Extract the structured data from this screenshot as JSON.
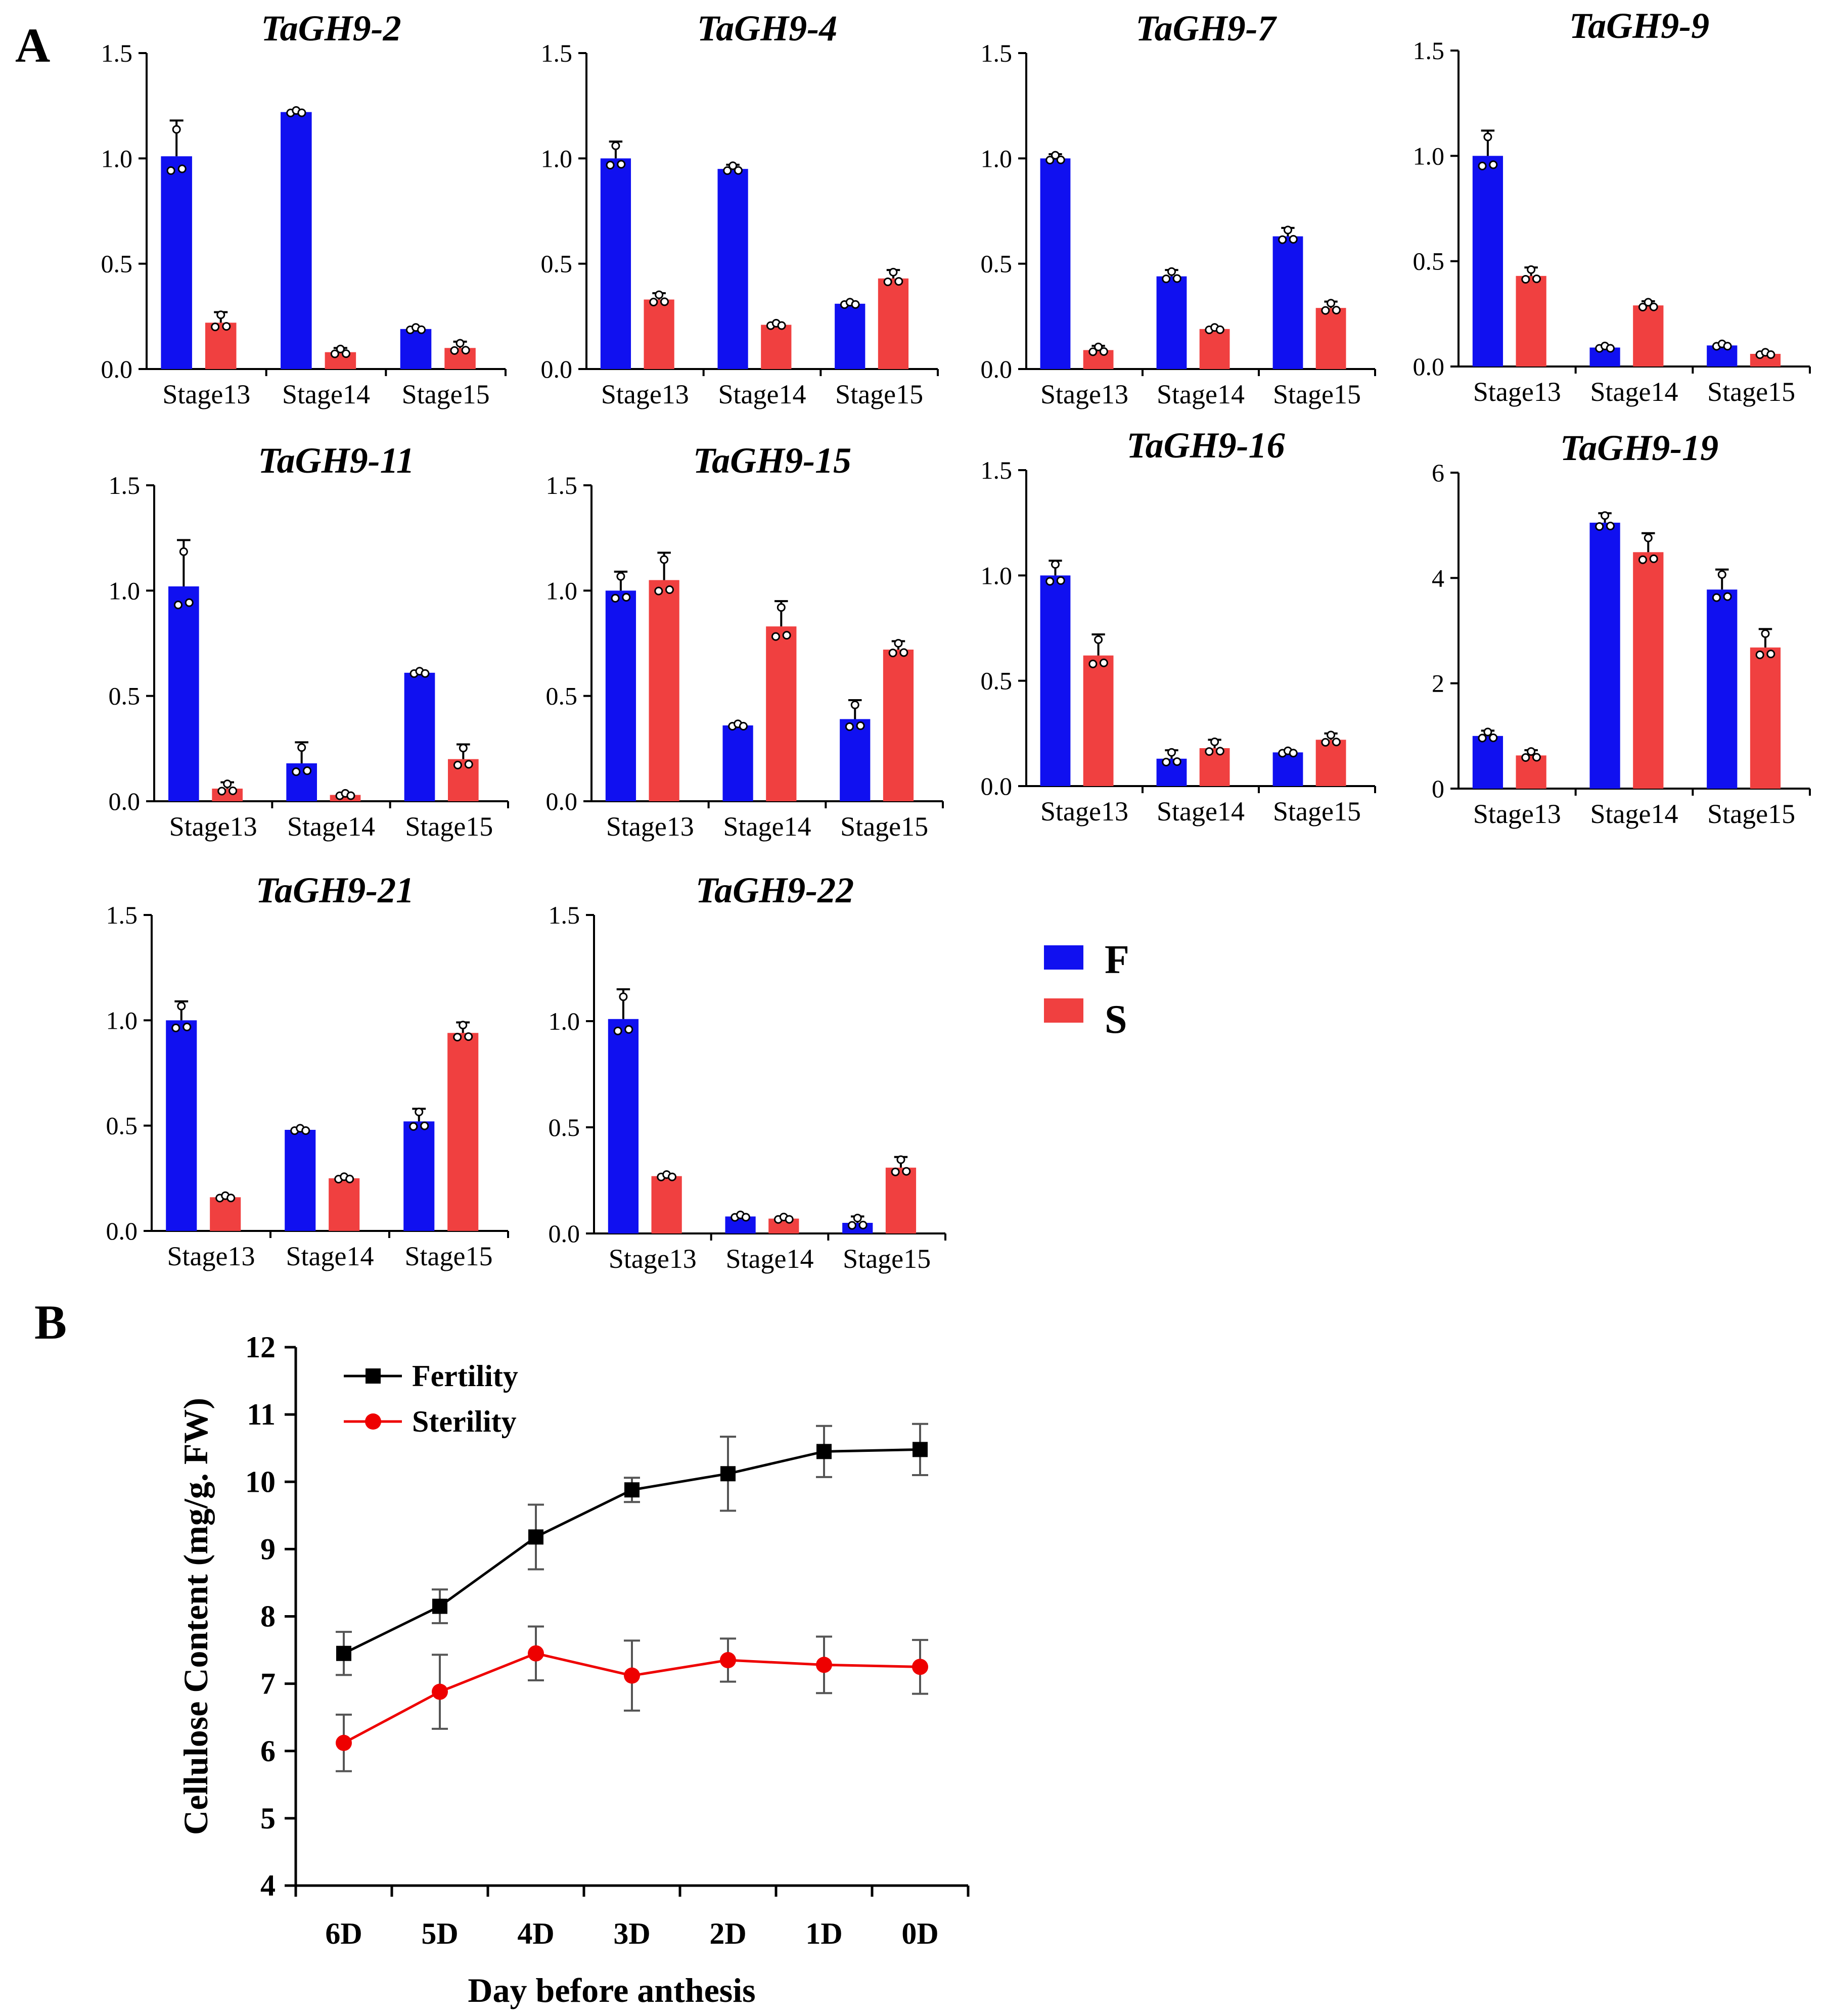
{
  "panel_labels": {
    "a": "A",
    "b": "B"
  },
  "colors": {
    "F": "#1010f0",
    "S": "#f04040",
    "fertility": "#000000",
    "sterility": "#ee0000"
  },
  "bar_legend": [
    {
      "key": "F",
      "label": "F"
    },
    {
      "key": "S",
      "label": "S"
    }
  ],
  "chart_data": [
    {
      "type": "bar",
      "title": "TaGH9-2",
      "categories": [
        "Stage13",
        "Stage14",
        "Stage15"
      ],
      "ylim": [
        0,
        1.5
      ],
      "yticks": [
        "0.0",
        "0.5",
        "1.0",
        "1.5"
      ],
      "series": [
        {
          "name": "F",
          "values": [
            1.01,
            1.22,
            0.19
          ],
          "err": [
            0.17,
            0.01,
            0.01
          ]
        },
        {
          "name": "S",
          "values": [
            0.22,
            0.08,
            0.1
          ],
          "err": [
            0.05,
            0.02,
            0.03
          ]
        }
      ]
    },
    {
      "type": "bar",
      "title": "TaGH9-4",
      "categories": [
        "Stage13",
        "Stage14",
        "Stage15"
      ],
      "ylim": [
        0,
        1.5
      ],
      "yticks": [
        "0.0",
        "0.5",
        "1.0",
        "1.5"
      ],
      "series": [
        {
          "name": "F",
          "values": [
            1.0,
            0.95,
            0.31
          ],
          "err": [
            0.08,
            0.02,
            0.01
          ]
        },
        {
          "name": "S",
          "values": [
            0.33,
            0.21,
            0.43
          ],
          "err": [
            0.03,
            0.01,
            0.04
          ]
        }
      ]
    },
    {
      "type": "bar",
      "title": "TaGH9-7",
      "categories": [
        "Stage13",
        "Stage14",
        "Stage15"
      ],
      "ylim": [
        0,
        1.5
      ],
      "yticks": [
        "0.0",
        "0.5",
        "1.0",
        "1.5"
      ],
      "series": [
        {
          "name": "F",
          "values": [
            1.0,
            0.44,
            0.63
          ],
          "err": [
            0.02,
            0.03,
            0.04
          ]
        },
        {
          "name": "S",
          "values": [
            0.09,
            0.19,
            0.29
          ],
          "err": [
            0.02,
            0.01,
            0.03
          ]
        }
      ]
    },
    {
      "type": "bar",
      "title": "TaGH9-9",
      "categories": [
        "Stage13",
        "Stage14",
        "Stage15"
      ],
      "ylim": [
        0,
        1.5
      ],
      "yticks": [
        "0.0",
        "0.5",
        "1.0",
        "1.5"
      ],
      "series": [
        {
          "name": "F",
          "values": [
            1.0,
            0.09,
            0.1
          ],
          "err": [
            0.12,
            0.01,
            0.01
          ]
        },
        {
          "name": "S",
          "values": [
            0.43,
            0.29,
            0.06
          ],
          "err": [
            0.04,
            0.02,
            0.01
          ]
        }
      ]
    },
    {
      "type": "bar",
      "title": "TaGH9-11",
      "categories": [
        "Stage13",
        "Stage14",
        "Stage15"
      ],
      "ylim": [
        0,
        1.5
      ],
      "yticks": [
        "0.0",
        "0.5",
        "1.0",
        "1.5"
      ],
      "series": [
        {
          "name": "F",
          "values": [
            1.02,
            0.18,
            0.61
          ],
          "err": [
            0.22,
            0.1,
            0.01
          ]
        },
        {
          "name": "S",
          "values": [
            0.06,
            0.03,
            0.2
          ],
          "err": [
            0.03,
            0.01,
            0.07
          ]
        }
      ]
    },
    {
      "type": "bar",
      "title": "TaGH9-15",
      "categories": [
        "Stage13",
        "Stage14",
        "Stage15"
      ],
      "ylim": [
        0,
        1.5
      ],
      "yticks": [
        "0.0",
        "0.5",
        "1.0",
        "1.5"
      ],
      "series": [
        {
          "name": "F",
          "values": [
            1.0,
            0.36,
            0.39
          ],
          "err": [
            0.09,
            0.01,
            0.09
          ]
        },
        {
          "name": "S",
          "values": [
            1.05,
            0.83,
            0.72
          ],
          "err": [
            0.13,
            0.12,
            0.04
          ]
        }
      ]
    },
    {
      "type": "bar",
      "title": "TaGH9-16",
      "categories": [
        "Stage13",
        "Stage14",
        "Stage15"
      ],
      "ylim": [
        0,
        1.5
      ],
      "yticks": [
        "0.0",
        "0.5",
        "1.0",
        "1.5"
      ],
      "series": [
        {
          "name": "F",
          "values": [
            1.0,
            0.13,
            0.16
          ],
          "err": [
            0.07,
            0.04,
            0.01
          ]
        },
        {
          "name": "S",
          "values": [
            0.62,
            0.18,
            0.22
          ],
          "err": [
            0.1,
            0.04,
            0.03
          ]
        }
      ]
    },
    {
      "type": "bar",
      "title": "TaGH9-19",
      "categories": [
        "Stage13",
        "Stage14",
        "Stage15"
      ],
      "ylim": [
        0,
        6
      ],
      "yticks": [
        "0",
        "2",
        "4",
        "6"
      ],
      "series": [
        {
          "name": "F",
          "values": [
            1.0,
            5.05,
            3.78
          ],
          "err": [
            0.1,
            0.18,
            0.38
          ]
        },
        {
          "name": "S",
          "values": [
            0.63,
            4.49,
            2.68
          ],
          "err": [
            0.1,
            0.36,
            0.35
          ]
        }
      ]
    },
    {
      "type": "bar",
      "title": "TaGH9-21",
      "categories": [
        "Stage13",
        "Stage14",
        "Stage15"
      ],
      "ylim": [
        0,
        1.5
      ],
      "yticks": [
        "0.0",
        "0.5",
        "1.0",
        "1.5"
      ],
      "series": [
        {
          "name": "F",
          "values": [
            1.0,
            0.48,
            0.52
          ],
          "err": [
            0.09,
            0.01,
            0.06
          ]
        },
        {
          "name": "S",
          "values": [
            0.16,
            0.25,
            0.94
          ],
          "err": [
            0.01,
            0.01,
            0.05
          ]
        }
      ]
    },
    {
      "type": "bar",
      "title": "TaGH9-22",
      "categories": [
        "Stage13",
        "Stage14",
        "Stage15"
      ],
      "ylim": [
        0,
        1.5
      ],
      "yticks": [
        "0.0",
        "0.5",
        "1.0",
        "1.5"
      ],
      "series": [
        {
          "name": "F",
          "values": [
            1.01,
            0.08,
            0.05
          ],
          "err": [
            0.14,
            0.01,
            0.03
          ]
        },
        {
          "name": "S",
          "values": [
            0.27,
            0.07,
            0.31
          ],
          "err": [
            0.01,
            0.01,
            0.05
          ]
        }
      ]
    },
    {
      "type": "line",
      "title": "",
      "xlabel": "Day before anthesis",
      "ylabel": "Cellulose Content (mg/g.  FW)",
      "x": [
        "6D",
        "5D",
        "4D",
        "3D",
        "2D",
        "1D",
        "0D"
      ],
      "ylim": [
        4,
        12
      ],
      "yticks": [
        "4",
        "5",
        "6",
        "7",
        "8",
        "9",
        "10",
        "11",
        "12"
      ],
      "series": [
        {
          "name": "Fertility",
          "values": [
            7.45,
            8.15,
            9.18,
            9.88,
            10.12,
            10.45,
            10.48
          ],
          "err": [
            0.32,
            0.25,
            0.48,
            0.18,
            0.55,
            0.38,
            0.38
          ]
        },
        {
          "name": "Sterility",
          "values": [
            6.12,
            6.88,
            7.45,
            7.12,
            7.35,
            7.28,
            7.25
          ],
          "err": [
            0.42,
            0.55,
            0.4,
            0.52,
            0.32,
            0.42,
            0.4
          ]
        }
      ]
    }
  ]
}
